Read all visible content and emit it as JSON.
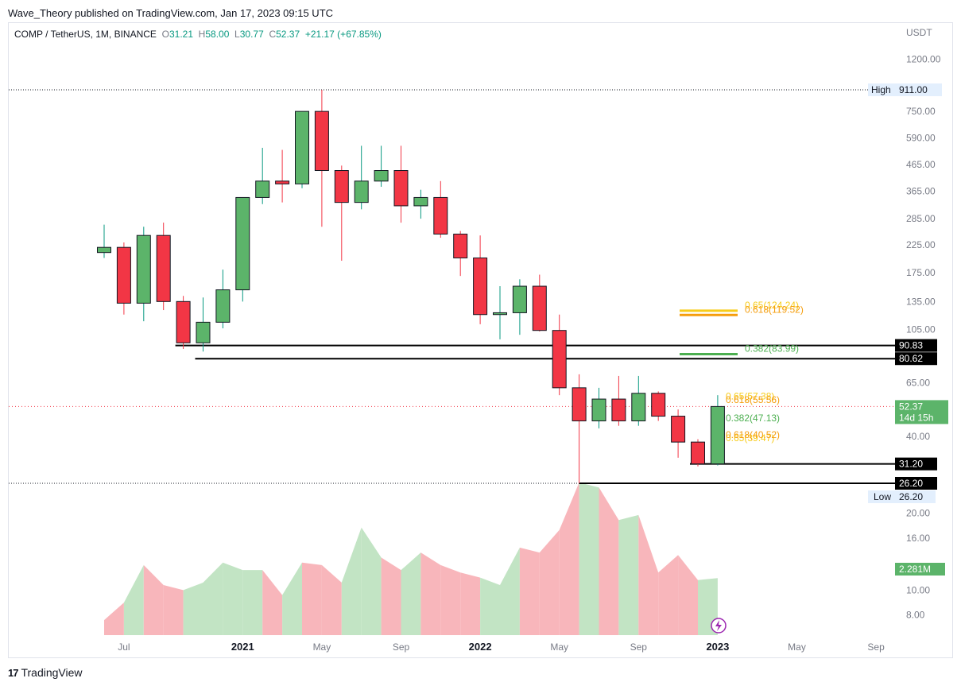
{
  "header": "Wave_Theory published on TradingView.com, Jan 17, 2023 09:15 UTC",
  "legend": {
    "symbol": "COMP / TetherUS, 1M, BINANCE",
    "o_label": "O",
    "o": "31.21",
    "h_label": "H",
    "h": "58.00",
    "l_label": "L",
    "l": "30.77",
    "c_label": "C",
    "c": "52.37",
    "change": "+21.17 (+67.85%)"
  },
  "footer": {
    "logo": "17",
    "brand": "TradingView"
  },
  "colors": {
    "up": "#5cb46a",
    "down": "#f23645",
    "volume_up": "#c2e4c4",
    "volume_down": "#f8b6bb",
    "fib_yellow": "#f7cc1a",
    "fib_orange": "#f59d0c",
    "fib_green": "#4caf50"
  },
  "chart_data": {
    "type": "candlestick",
    "currency_label": "USDT",
    "y_scale": "log",
    "y_ticks": [
      "1200.00",
      "750.00",
      "590.00",
      "465.00",
      "365.00",
      "285.00",
      "225.00",
      "175.00",
      "135.00",
      "105.00",
      "65.00",
      "40.00",
      "20.00",
      "16.00",
      "10.00",
      "8.00"
    ],
    "x_tick_labels": [
      {
        "label": "Jul",
        "bold": false,
        "index": 1
      },
      {
        "label": "2021",
        "bold": true,
        "index": 7
      },
      {
        "label": "May",
        "bold": false,
        "index": 11
      },
      {
        "label": "Sep",
        "bold": false,
        "index": 15
      },
      {
        "label": "2022",
        "bold": true,
        "index": 19
      },
      {
        "label": "May",
        "bold": false,
        "index": 23
      },
      {
        "label": "Sep",
        "bold": false,
        "index": 27
      },
      {
        "label": "2023",
        "bold": true,
        "index": 31
      },
      {
        "label": "May",
        "bold": false,
        "index": 35
      },
      {
        "label": "Sep",
        "bold": false,
        "index": 39
      }
    ],
    "candles": [
      {
        "o": 210,
        "h": 270,
        "l": 200,
        "c": 220
      },
      {
        "o": 220,
        "h": 230,
        "l": 120,
        "c": 133
      },
      {
        "o": 133,
        "h": 265,
        "l": 113,
        "c": 245
      },
      {
        "o": 245,
        "h": 275,
        "l": 125,
        "c": 135
      },
      {
        "o": 135,
        "h": 142,
        "l": 88,
        "c": 93
      },
      {
        "o": 93,
        "h": 140,
        "l": 86,
        "c": 112
      },
      {
        "o": 112,
        "h": 180,
        "l": 106,
        "c": 150
      },
      {
        "o": 150,
        "h": 345,
        "l": 135,
        "c": 345
      },
      {
        "o": 345,
        "h": 540,
        "l": 325,
        "c": 400
      },
      {
        "o": 400,
        "h": 530,
        "l": 330,
        "c": 390
      },
      {
        "o": 390,
        "h": 750,
        "l": 375,
        "c": 750
      },
      {
        "o": 750,
        "h": 911,
        "l": 265,
        "c": 440
      },
      {
        "o": 440,
        "h": 460,
        "l": 195,
        "c": 330
      },
      {
        "o": 330,
        "h": 550,
        "l": 310,
        "c": 400
      },
      {
        "o": 400,
        "h": 550,
        "l": 380,
        "c": 440
      },
      {
        "o": 440,
        "h": 550,
        "l": 275,
        "c": 320
      },
      {
        "o": 320,
        "h": 370,
        "l": 285,
        "c": 345
      },
      {
        "o": 345,
        "h": 400,
        "l": 240,
        "c": 248
      },
      {
        "o": 248,
        "h": 255,
        "l": 170,
        "c": 200
      },
      {
        "o": 200,
        "h": 245,
        "l": 110,
        "c": 120
      },
      {
        "o": 120,
        "h": 155,
        "l": 96,
        "c": 122
      },
      {
        "o": 122,
        "h": 165,
        "l": 100,
        "c": 155
      },
      {
        "o": 155,
        "h": 172,
        "l": 103,
        "c": 104
      },
      {
        "o": 104,
        "h": 120,
        "l": 58,
        "c": 62
      },
      {
        "o": 62,
        "h": 70,
        "l": 26.2,
        "c": 46
      },
      {
        "o": 46,
        "h": 62,
        "l": 43,
        "c": 56
      },
      {
        "o": 56,
        "h": 69,
        "l": 44,
        "c": 46
      },
      {
        "o": 46,
        "h": 69,
        "l": 44,
        "c": 59
      },
      {
        "o": 59,
        "h": 60,
        "l": 46,
        "c": 48
      },
      {
        "o": 48,
        "h": 51,
        "l": 33,
        "c": 38
      },
      {
        "o": 38,
        "h": 39,
        "l": 30.5,
        "c": 31.21
      },
      {
        "o": 31.21,
        "h": 58,
        "l": 30.77,
        "c": 52.37
      }
    ],
    "volume": [
      0.6,
      1.3,
      2.8,
      2.0,
      1.8,
      2.1,
      2.9,
      2.6,
      2.6,
      1.6,
      2.9,
      2.8,
      2.1,
      4.3,
      3.1,
      2.6,
      3.3,
      2.8,
      2.5,
      2.3,
      2.0,
      3.5,
      3.3,
      4.2,
      6.1,
      5.9,
      4.6,
      4.8,
      2.5,
      3.2,
      2.2,
      2.281
    ],
    "volume_max": 6.1,
    "horizontal_lines": [
      {
        "value": 90.83,
        "label": "90.83"
      },
      {
        "value": 80.62,
        "label": "80.62"
      },
      {
        "value": 31.2,
        "label": "31.20"
      },
      {
        "value": 26.2,
        "label": "26.20"
      }
    ],
    "high": {
      "label": "High",
      "value": "911.00"
    },
    "low": {
      "label": "Low",
      "value": "26.20"
    },
    "current_price": {
      "value": "52.37",
      "countdown": "14d 15h"
    },
    "volume_label": "2.281M",
    "fib_levels": [
      {
        "text": "0.65(124.24)",
        "value": 124.24,
        "color": "#f7cc1a",
        "show_line": true
      },
      {
        "text": "0.618(119.52)",
        "value": 119.52,
        "color": "#f59d0c",
        "show_line": true
      },
      {
        "text": "0.382(83.99)",
        "value": 83.99,
        "color": "#4caf50",
        "show_line": true
      },
      {
        "text": "0.65(57.38)",
        "value": 57.38,
        "color": "#f7cc1a",
        "show_line": false
      },
      {
        "text": "0.618(55.56)",
        "value": 55.56,
        "color": "#f59d0c",
        "show_line": false
      },
      {
        "text": "0.382(47.13)",
        "value": 47.13,
        "color": "#4caf50",
        "show_line": false
      },
      {
        "text": "0.65(39.47)",
        "value": 39.47,
        "color": "#f7cc1a",
        "show_line": false
      },
      {
        "text": "0.618(40.52)",
        "value": 40.52,
        "color": "#f59d0c",
        "show_line": false
      }
    ]
  }
}
